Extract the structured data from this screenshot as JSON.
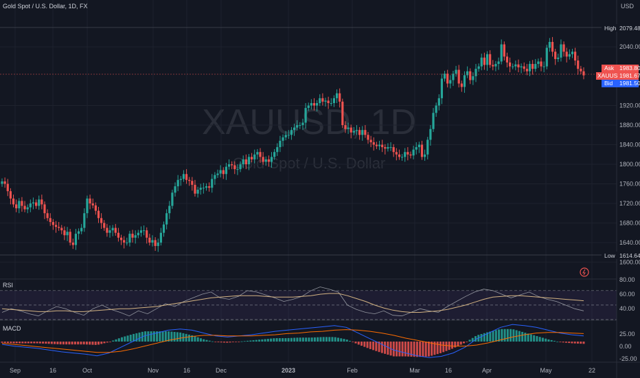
{
  "header": {
    "title": "Gold Spot / U.S. Dollar, 1D, FX",
    "currency": "USD"
  },
  "watermark": {
    "symbol": "XAUUSD, 1D",
    "name": "Gold Spot / U.S. Dollar"
  },
  "price_tags": {
    "high": {
      "label": "High",
      "value": "2079.48"
    },
    "ask": {
      "label": "Ask",
      "value": "1983.80"
    },
    "symbol": {
      "label": "XAUUSD",
      "value": "1981.67"
    },
    "bid": {
      "label": "Bid",
      "value": "1981.50"
    },
    "low": {
      "label": "Low",
      "value": "1614.64"
    }
  },
  "rsi_panel": {
    "title": "RSI",
    "ticks": [
      "80.00",
      "60.00",
      "40.00"
    ]
  },
  "macd_panel": {
    "title": "MACD",
    "ticks": [
      "25.00",
      "0.00",
      "-25.00"
    ]
  },
  "colors": {
    "up": "#26a69a",
    "down": "#ef5350",
    "rsi": "#9598a1",
    "rsi_ma": "#d4b483",
    "macd": "#2962ff",
    "signal": "#ff6d00",
    "bg": "#131722",
    "grid": "#1e222d"
  },
  "chart_data": {
    "type": "candlestick",
    "symbol": "XAUUSD",
    "timeframe": "1D",
    "ylim": [
      1600,
      2080
    ],
    "y_ticks": [
      1600,
      1640,
      1680,
      1720,
      1760,
      1800,
      1840,
      1880,
      1920,
      2040
    ],
    "x_ticks": [
      "Sep",
      "16",
      "Oct",
      "Nov",
      "16",
      "Dec",
      "2023",
      "Feb",
      "Mar",
      "16",
      "Apr",
      "May",
      "22"
    ],
    "closes": [
      1765,
      1760,
      1745,
      1730,
      1718,
      1710,
      1725,
      1715,
      1708,
      1712,
      1720,
      1722,
      1715,
      1728,
      1718,
      1700,
      1690,
      1682,
      1676,
      1672,
      1670,
      1665,
      1655,
      1662,
      1640,
      1635,
      1658,
      1663,
      1670,
      1700,
      1730,
      1720,
      1716,
      1705,
      1690,
      1680,
      1670,
      1660,
      1665,
      1670,
      1660,
      1650,
      1645,
      1640,
      1640,
      1658,
      1650,
      1655,
      1660,
      1665,
      1665,
      1650,
      1640,
      1645,
      1633,
      1640,
      1660,
      1677,
      1700,
      1715,
      1742,
      1755,
      1768,
      1770,
      1780,
      1768,
      1766,
      1758,
      1740,
      1748,
      1752,
      1752,
      1755,
      1752,
      1770,
      1778,
      1781,
      1788,
      1780,
      1795,
      1800,
      1798,
      1790,
      1790,
      1800,
      1810,
      1800,
      1815,
      1810,
      1820,
      1825,
      1815,
      1805,
      1810,
      1805,
      1815,
      1825,
      1835,
      1848,
      1855,
      1860,
      1860,
      1870,
      1875,
      1880,
      1880,
      1885,
      1915,
      1920,
      1925,
      1920,
      1925,
      1935,
      1928,
      1930,
      1925,
      1925,
      1935,
      1945,
      1928,
      1880,
      1872,
      1875,
      1865,
      1868,
      1870,
      1860,
      1870,
      1860,
      1850,
      1845,
      1840,
      1837,
      1840,
      1835,
      1832,
      1835,
      1835,
      1825,
      1820,
      1815,
      1815,
      1825,
      1820,
      1818,
      1830,
      1835,
      1840,
      1815,
      1820,
      1850,
      1872,
      1905,
      1920,
      1935,
      1975,
      1985,
      1965,
      1972,
      1985,
      1993,
      1965,
      1958,
      1982,
      1990,
      1972,
      1980,
      1995,
      2000,
      2018,
      2003,
      2025,
      2003,
      2000,
      2005,
      2010,
      2045,
      2020,
      2008,
      2000,
      2000,
      2004,
      1998,
      2000,
      1995,
      1990,
      2005,
      1995,
      2005,
      2010,
      2000,
      2000,
      2038,
      2050,
      2030,
      2015,
      2018,
      2045,
      2030,
      2020,
      2025,
      2030,
      2012,
      1995,
      1990,
      1981.67
    ],
    "high": 2079.48,
    "low": 1614.64,
    "last": 1981.67,
    "ask": 1983.8,
    "bid": 1981.5,
    "rsi": {
      "ylim": [
        30,
        85
      ],
      "ticks": [
        80,
        60,
        40
      ],
      "bands": [
        70,
        50,
        30
      ],
      "values": [
        40,
        45,
        42,
        38,
        35,
        42,
        48,
        45,
        40,
        36,
        45,
        50,
        44,
        40,
        35,
        42,
        38,
        45,
        52,
        48,
        55,
        60,
        65,
        68,
        60,
        58,
        62,
        70,
        68,
        64,
        60,
        55,
        58,
        62,
        70,
        75,
        72,
        68,
        50,
        44,
        40,
        38,
        42,
        36,
        35,
        40,
        45,
        42,
        40,
        48,
        55,
        62,
        68,
        72,
        70,
        65,
        60,
        64,
        68,
        62,
        58,
        55,
        50,
        45,
        42
      ],
      "ma": [
        45,
        44,
        43,
        42,
        41,
        41,
        42,
        42,
        41,
        41,
        42,
        43,
        44,
        45,
        45,
        46,
        47,
        48,
        50,
        52,
        54,
        56,
        58,
        60,
        61,
        62,
        63,
        63,
        63,
        62,
        61,
        61,
        61,
        62,
        63,
        65,
        66,
        66,
        63,
        59,
        55,
        50,
        46,
        43,
        41,
        40,
        40,
        41,
        42,
        44,
        47,
        50,
        54,
        58,
        61,
        62,
        63,
        63,
        62,
        61,
        60,
        59,
        58,
        57,
        56
      ]
    },
    "macd": {
      "ylim": [
        -35,
        35
      ],
      "ticks": [
        25,
        0,
        -25
      ],
      "macd": [
        -5,
        -8,
        -10,
        -12,
        -15,
        -18,
        -20,
        -22,
        -25,
        -20,
        -10,
        0,
        10,
        15,
        20,
        22,
        20,
        15,
        10,
        8,
        10,
        12,
        15,
        18,
        20,
        22,
        24,
        26,
        28,
        25,
        15,
        5,
        -5,
        -15,
        -20,
        -25,
        -28,
        -26,
        -20,
        -10,
        5,
        15,
        25,
        30,
        28,
        25,
        20,
        15,
        12,
        10
      ],
      "signal": [
        -3,
        -5,
        -7,
        -9,
        -11,
        -13,
        -15,
        -17,
        -19,
        -19,
        -17,
        -13,
        -8,
        -3,
        2,
        6,
        9,
        11,
        11,
        10,
        10,
        10,
        11,
        12,
        14,
        15,
        17,
        18,
        20,
        21,
        20,
        18,
        15,
        11,
        6,
        2,
        -2,
        -6,
        -8,
        -8,
        -6,
        -2,
        3,
        8,
        12,
        15,
        16,
        16,
        15,
        14
      ]
    }
  }
}
